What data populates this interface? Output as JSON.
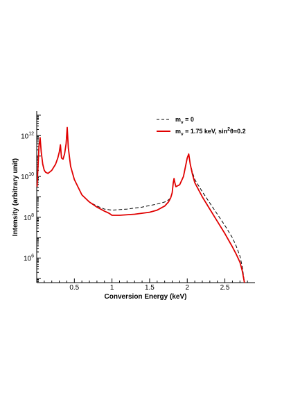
{
  "chart_data": {
    "type": "line",
    "xlabel": "Conversion Energy (keV)",
    "ylabel": "Intensity (arbitrary unit)",
    "xlim": [
      0,
      2.9
    ],
    "ylim_log10": [
      4.8,
      13.2
    ],
    "yscale": "log",
    "x_ticks": [
      {
        "value": 0.5,
        "label": "0.5"
      },
      {
        "value": 1.0,
        "label": "1"
      },
      {
        "value": 1.5,
        "label": "1.5"
      },
      {
        "value": 2.0,
        "label": "2"
      },
      {
        "value": 2.5,
        "label": "2.5"
      }
    ],
    "y_ticks": [
      {
        "exp": 6,
        "base": "10",
        "sup": "6"
      },
      {
        "exp": 8,
        "base": "10",
        "sup": "8"
      },
      {
        "exp": 10,
        "base": "10",
        "sup": "10"
      },
      {
        "exp": 12,
        "base": "10",
        "sup": "12"
      }
    ],
    "legend_placement": "top-right",
    "grid": false,
    "series": [
      {
        "legend": {
          "m": "m",
          "sub": "ν",
          "rest": " = 0"
        },
        "color": "#000000",
        "dash": "dashed",
        "points": [
          [
            0.005,
            9.5
          ],
          [
            0.03,
            11.5
          ],
          [
            0.045,
            11.9
          ],
          [
            0.06,
            11.2
          ],
          [
            0.08,
            10.6
          ],
          [
            0.1,
            10.3
          ],
          [
            0.12,
            10.2
          ],
          [
            0.15,
            10.15
          ],
          [
            0.2,
            10.3
          ],
          [
            0.25,
            10.6
          ],
          [
            0.28,
            10.9
          ],
          [
            0.3,
            11.2
          ],
          [
            0.315,
            11.55
          ],
          [
            0.33,
            10.9
          ],
          [
            0.35,
            10.85
          ],
          [
            0.37,
            11.1
          ],
          [
            0.39,
            11.6
          ],
          [
            0.405,
            12.4
          ],
          [
            0.42,
            11.4
          ],
          [
            0.45,
            10.5
          ],
          [
            0.5,
            9.85
          ],
          [
            0.6,
            9.1
          ],
          [
            0.7,
            8.75
          ],
          [
            0.8,
            8.55
          ],
          [
            0.9,
            8.4
          ],
          [
            1.0,
            8.35
          ],
          [
            1.2,
            8.4
          ],
          [
            1.4,
            8.5
          ],
          [
            1.6,
            8.65
          ],
          [
            1.7,
            8.75
          ],
          [
            1.75,
            8.85
          ],
          [
            1.78,
            8.95
          ],
          [
            1.8,
            9.2
          ],
          [
            1.815,
            9.7
          ],
          [
            1.825,
            9.9
          ],
          [
            1.835,
            9.7
          ],
          [
            1.85,
            9.5
          ],
          [
            1.9,
            9.6
          ],
          [
            1.95,
            10.0
          ],
          [
            2.0,
            10.9
          ],
          [
            2.02,
            11.1
          ],
          [
            2.04,
            10.6
          ],
          [
            2.07,
            10.2
          ],
          [
            2.1,
            9.85
          ],
          [
            2.2,
            9.25
          ],
          [
            2.3,
            8.7
          ],
          [
            2.4,
            8.15
          ],
          [
            2.5,
            7.6
          ],
          [
            2.6,
            7.0
          ],
          [
            2.65,
            6.6
          ],
          [
            2.7,
            6.1
          ],
          [
            2.73,
            5.6
          ],
          [
            2.75,
            5.1
          ],
          [
            2.76,
            4.8
          ]
        ]
      },
      {
        "legend": {
          "m": "m",
          "sub": "ν",
          "rest": " = 1.75 keV, sin",
          "sup": "2",
          "rest2": "θ=0.2"
        },
        "color": "#e00000",
        "dash": "solid",
        "points": [
          [
            0.005,
            9.5
          ],
          [
            0.03,
            11.5
          ],
          [
            0.045,
            11.9
          ],
          [
            0.06,
            11.2
          ],
          [
            0.08,
            10.6
          ],
          [
            0.1,
            10.3
          ],
          [
            0.12,
            10.2
          ],
          [
            0.15,
            10.15
          ],
          [
            0.2,
            10.3
          ],
          [
            0.25,
            10.6
          ],
          [
            0.28,
            10.9
          ],
          [
            0.3,
            11.2
          ],
          [
            0.315,
            11.55
          ],
          [
            0.33,
            10.9
          ],
          [
            0.35,
            10.85
          ],
          [
            0.37,
            11.1
          ],
          [
            0.39,
            11.6
          ],
          [
            0.405,
            12.4
          ],
          [
            0.42,
            11.4
          ],
          [
            0.45,
            10.5
          ],
          [
            0.5,
            9.85
          ],
          [
            0.6,
            9.1
          ],
          [
            0.7,
            8.75
          ],
          [
            0.8,
            8.5
          ],
          [
            0.9,
            8.3
          ],
          [
            0.96,
            8.2
          ],
          [
            1.0,
            8.1
          ],
          [
            1.1,
            8.1
          ],
          [
            1.3,
            8.15
          ],
          [
            1.5,
            8.25
          ],
          [
            1.6,
            8.35
          ],
          [
            1.7,
            8.55
          ],
          [
            1.75,
            8.75
          ],
          [
            1.78,
            8.95
          ],
          [
            1.8,
            9.2
          ],
          [
            1.815,
            9.7
          ],
          [
            1.825,
            9.9
          ],
          [
            1.835,
            9.7
          ],
          [
            1.85,
            9.5
          ],
          [
            1.9,
            9.6
          ],
          [
            1.95,
            10.0
          ],
          [
            2.0,
            10.9
          ],
          [
            2.02,
            11.1
          ],
          [
            2.04,
            10.6
          ],
          [
            2.07,
            10.1
          ],
          [
            2.1,
            9.7
          ],
          [
            2.2,
            9.0
          ],
          [
            2.3,
            8.4
          ],
          [
            2.4,
            7.8
          ],
          [
            2.5,
            7.2
          ],
          [
            2.6,
            6.55
          ],
          [
            2.65,
            6.2
          ],
          [
            2.7,
            5.8
          ],
          [
            2.73,
            5.4
          ],
          [
            2.75,
            5.0
          ],
          [
            2.76,
            4.8
          ]
        ]
      }
    ]
  }
}
